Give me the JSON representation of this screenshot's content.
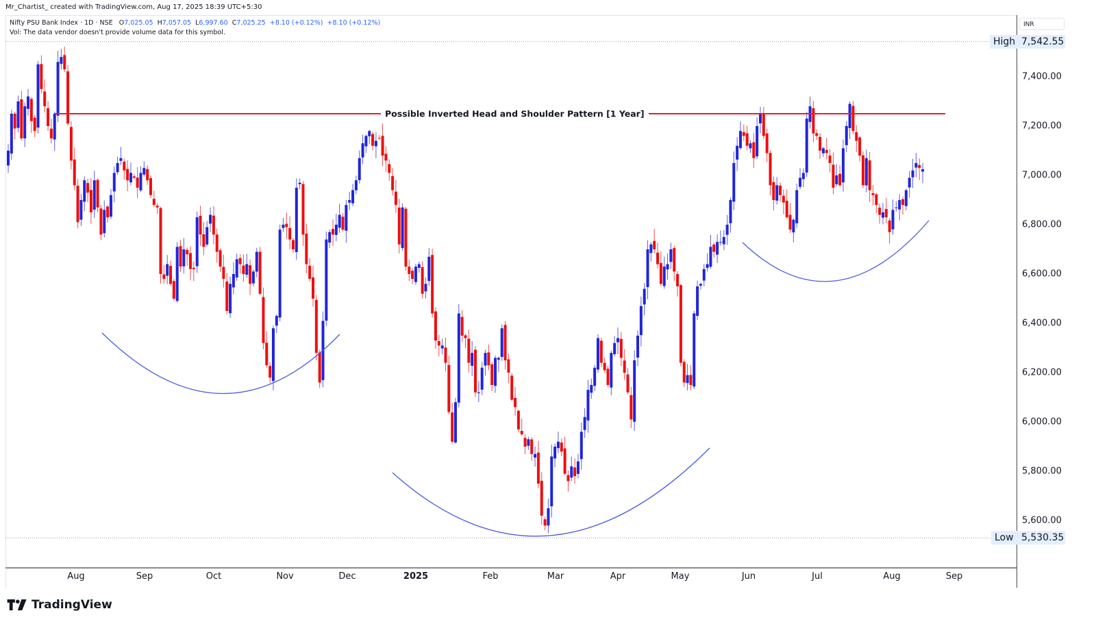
{
  "header": {
    "attribution": "Mr_Chartist_ created with TradingView.com, Aug 17, 2025 18:39 UTC+5:30"
  },
  "legend": {
    "symbol": "Nifty PSU Bank Index · 1D · NSE",
    "open_label": "O",
    "open": "7,025.05",
    "high_label": "H",
    "high": "7,057.05",
    "low_label": "L",
    "low": "6,997.60",
    "close_label": "C",
    "close": "7,025.25",
    "change1": "+8.10 (+0.12%)",
    "change2": "+8.10 (+0.12%)",
    "volume_note": "Vol: The data vendor doesn't provide volume data for this symbol."
  },
  "price_axis": {
    "currency": "INR",
    "ticks": [
      "7,400.00",
      "7,200.00",
      "7,000.00",
      "6,800.00",
      "6,600.00",
      "6,400.00",
      "6,200.00",
      "6,000.00",
      "5,800.00",
      "5,600.00"
    ],
    "high_label": "High",
    "high_value": "7,542.55",
    "low_label": "Low",
    "low_value": "5,530.35"
  },
  "time_axis": {
    "ticks": [
      "Aug",
      "Sep",
      "Oct",
      "Nov",
      "Dec",
      "2025",
      "Feb",
      "Mar",
      "Apr",
      "May",
      "Jun",
      "Jul",
      "Aug",
      "Sep"
    ]
  },
  "annotation": {
    "text": "Possible Inverted Head and Shoulder Pattern [1 Year]"
  },
  "brand": {
    "name": "TradingView"
  },
  "colors": {
    "up": "#2026d9",
    "down": "#ee0f0f",
    "neckline": "#ee1c25",
    "arc": "#4a5ae0",
    "highlight_bg": "#e3effd"
  },
  "chart_data": {
    "type": "candlestick",
    "title": "Nifty PSU Bank Index · 1D · NSE",
    "xlabel": "",
    "ylabel": "INR",
    "ylim": [
      5430,
      7620
    ],
    "grid": false,
    "x_range": [
      "2024-07",
      "2025-08-14"
    ],
    "x_ticks": [
      "Aug",
      "Sep",
      "Oct",
      "Nov",
      "Dec",
      "2025",
      "Feb",
      "Mar",
      "Apr",
      "May",
      "Jun",
      "Jul",
      "Aug",
      "Sep"
    ],
    "y_ticks": [
      7400,
      7200,
      7000,
      6800,
      6600,
      6400,
      6200,
      6000,
      5800,
      5600
    ],
    "period_high": 7542.55,
    "period_low": 5530.35,
    "last_bar": {
      "open": 7025.05,
      "high": 7057.05,
      "low": 6997.6,
      "close": 7025.25,
      "change": 8.1,
      "change_pct": 0.12
    },
    "neckline": {
      "price": 7250,
      "label": "Possible Inverted Head and Shoulder Pattern [1 Year]"
    },
    "pattern_arcs": [
      {
        "name": "left-shoulder",
        "from": "Aug-2024",
        "to": "Nov-2024",
        "bottom_price": 6120
      },
      {
        "name": "head",
        "from": "Jan-2025",
        "to": "May-2025",
        "bottom_price": 5530
      },
      {
        "name": "right-shoulder",
        "from": "Jun-2025",
        "to": "Aug-2025",
        "bottom_price": 6580
      }
    ],
    "closes": [
      7100,
      7250,
      7190,
      7300,
      7150,
      7280,
      7320,
      7220,
      7180,
      7450,
      7350,
      7280,
      7200,
      7150,
      7250,
      7460,
      7480,
      7430,
      7210,
      7060,
      6960,
      6810,
      6900,
      6980,
      6930,
      6850,
      6980,
      6870,
      6760,
      6860,
      6830,
      6920,
      7010,
      7050,
      7070,
      7020,
      6980,
      7010,
      6990,
      6950,
      7010,
      7030,
      6980,
      6920,
      6880,
      6870,
      6600,
      6580,
      6640,
      6560,
      6500,
      6710,
      6630,
      6700,
      6680,
      6620,
      6620,
      6830,
      6760,
      6710,
      6790,
      6840,
      6760,
      6690,
      6630,
      6580,
      6450,
      6560,
      6600,
      6660,
      6640,
      6600,
      6640,
      6560,
      6610,
      6690,
      6520,
      6320,
      6230,
      6180,
      6380,
      6430,
      6780,
      6800,
      6790,
      6740,
      6700,
      6950,
      6970,
      6760,
      6640,
      6580,
      6500,
      6280,
      6160,
      6410,
      6740,
      6770,
      6760,
      6800,
      6840,
      6780,
      6880,
      6900,
      6940,
      6980,
      7070,
      7130,
      7160,
      7180,
      7120,
      7140,
      7150,
      7080,
      7060,
      7010,
      6940,
      6880,
      6720,
      6870,
      6630,
      6600,
      6580,
      6630,
      6640,
      6520,
      6560,
      6670,
      6440,
      6330,
      6310,
      6310,
      6240,
      6040,
      5920,
      6080,
      6440,
      6350,
      6340,
      6240,
      6280,
      6120,
      6120,
      6220,
      6280,
      6230,
      6150,
      6260,
      6260,
      6380,
      6250,
      6200,
      6090,
      6060,
      5970,
      5950,
      5900,
      5930,
      5870,
      5870,
      5750,
      5620,
      5580,
      5650,
      5860,
      5900,
      5920,
      5880,
      5790,
      5760,
      5820,
      5780,
      5840,
      5960,
      6020,
      6130,
      6150,
      6220,
      6340,
      6240,
      6210,
      6150,
      6280,
      6320,
      6340,
      6260,
      6200,
      6120,
      6010,
      6250,
      6350,
      6470,
      6540,
      6700,
      6720,
      6700,
      6640,
      6560,
      6630,
      6640,
      6700,
      6610,
      6550,
      6240,
      6160,
      6190,
      6150,
      6440,
      6550,
      6560,
      6620,
      6640,
      6710,
      6690,
      6730,
      6730,
      6750,
      6800,
      6900,
      7050,
      7120,
      7180,
      7160,
      7120,
      7130,
      7070,
      7200,
      7250,
      7160,
      7090,
      6960,
      6900,
      6960,
      6920,
      6890,
      6830,
      6780,
      6820,
      6940,
      6990,
      7010,
      7230,
      7280,
      7170,
      7160,
      7100,
      7110,
      7090,
      7050,
      6950,
      7000,
      6960,
      7110,
      7200,
      7290,
      7180,
      7140,
      7080,
      6960,
      7070,
      6940,
      6920,
      6880,
      6840,
      6850,
      6830,
      6770,
      6860,
      6870,
      6900,
      6880,
      6940,
      6990,
      7020,
      7050,
      7030,
      7025
    ]
  }
}
